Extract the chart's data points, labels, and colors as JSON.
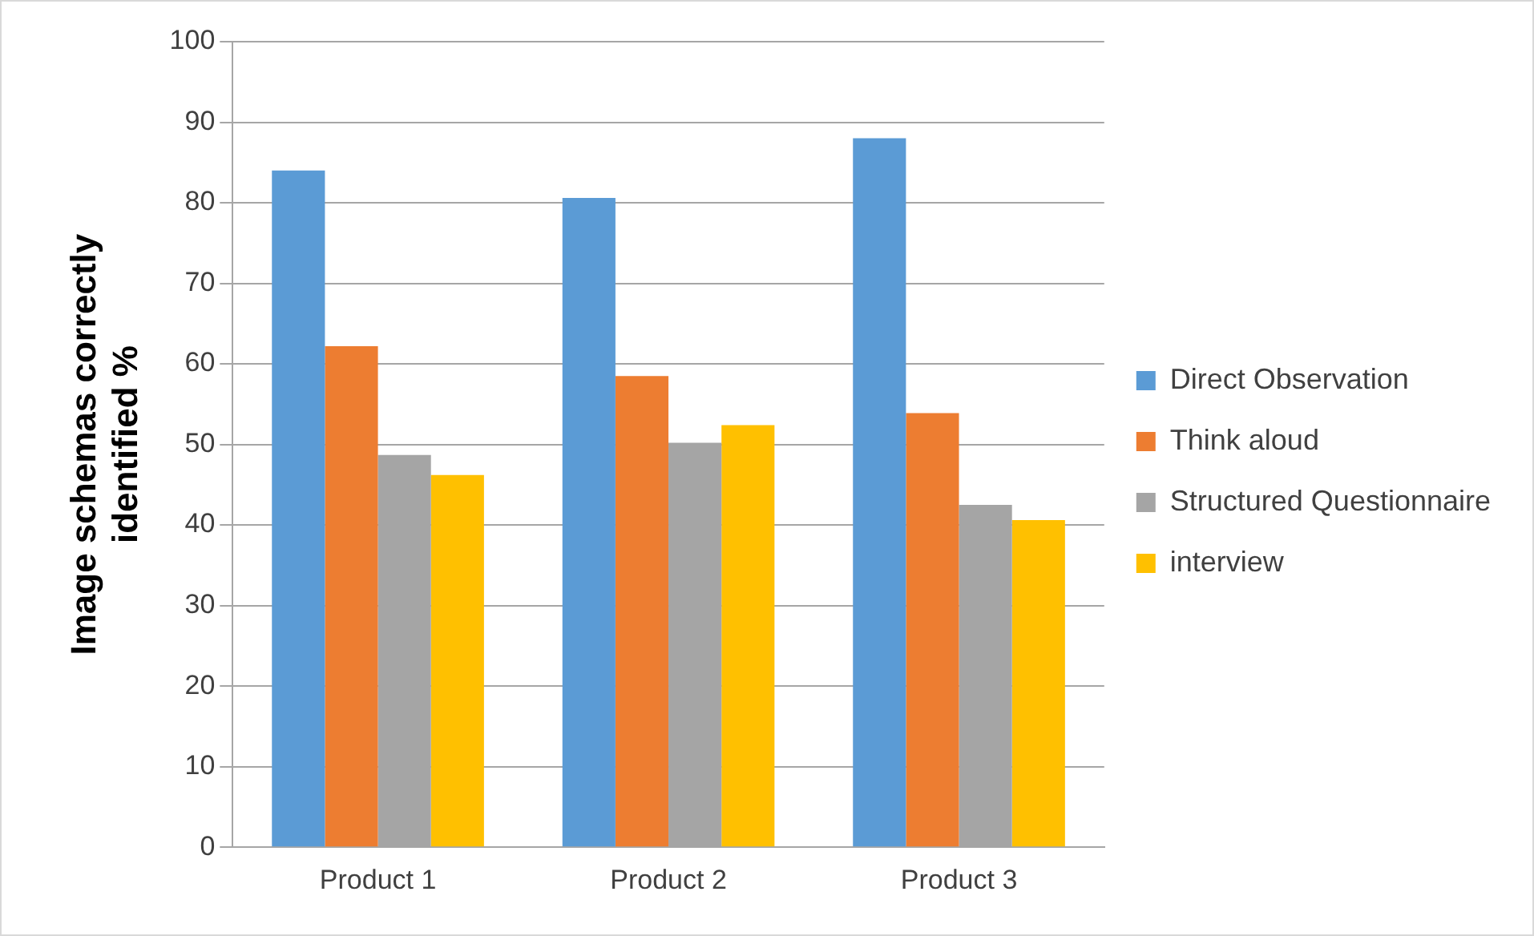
{
  "chart_data": {
    "type": "bar",
    "ylabel": "Image schemas correctly identified %",
    "categories": [
      "Product 1",
      "Product 2",
      "Product 3"
    ],
    "series": [
      {
        "name": "Direct Observation",
        "color": "#5b9bd5",
        "values": [
          84.0,
          80.6,
          88.0
        ]
      },
      {
        "name": "Think aloud",
        "color": "#ed7d31",
        "values": [
          62.2,
          58.5,
          53.9
        ]
      },
      {
        "name": "Structured Questionnaire",
        "color": "#a5a5a5",
        "values": [
          48.7,
          50.2,
          42.5
        ]
      },
      {
        "name": "interview",
        "color": "#ffc000",
        "values": [
          46.2,
          52.4,
          40.6
        ]
      }
    ],
    "ylim": [
      0,
      100
    ],
    "yticks": [
      0,
      10,
      20,
      30,
      40,
      50,
      60,
      70,
      80,
      90,
      100
    ],
    "grid": "y",
    "legend": "right"
  }
}
